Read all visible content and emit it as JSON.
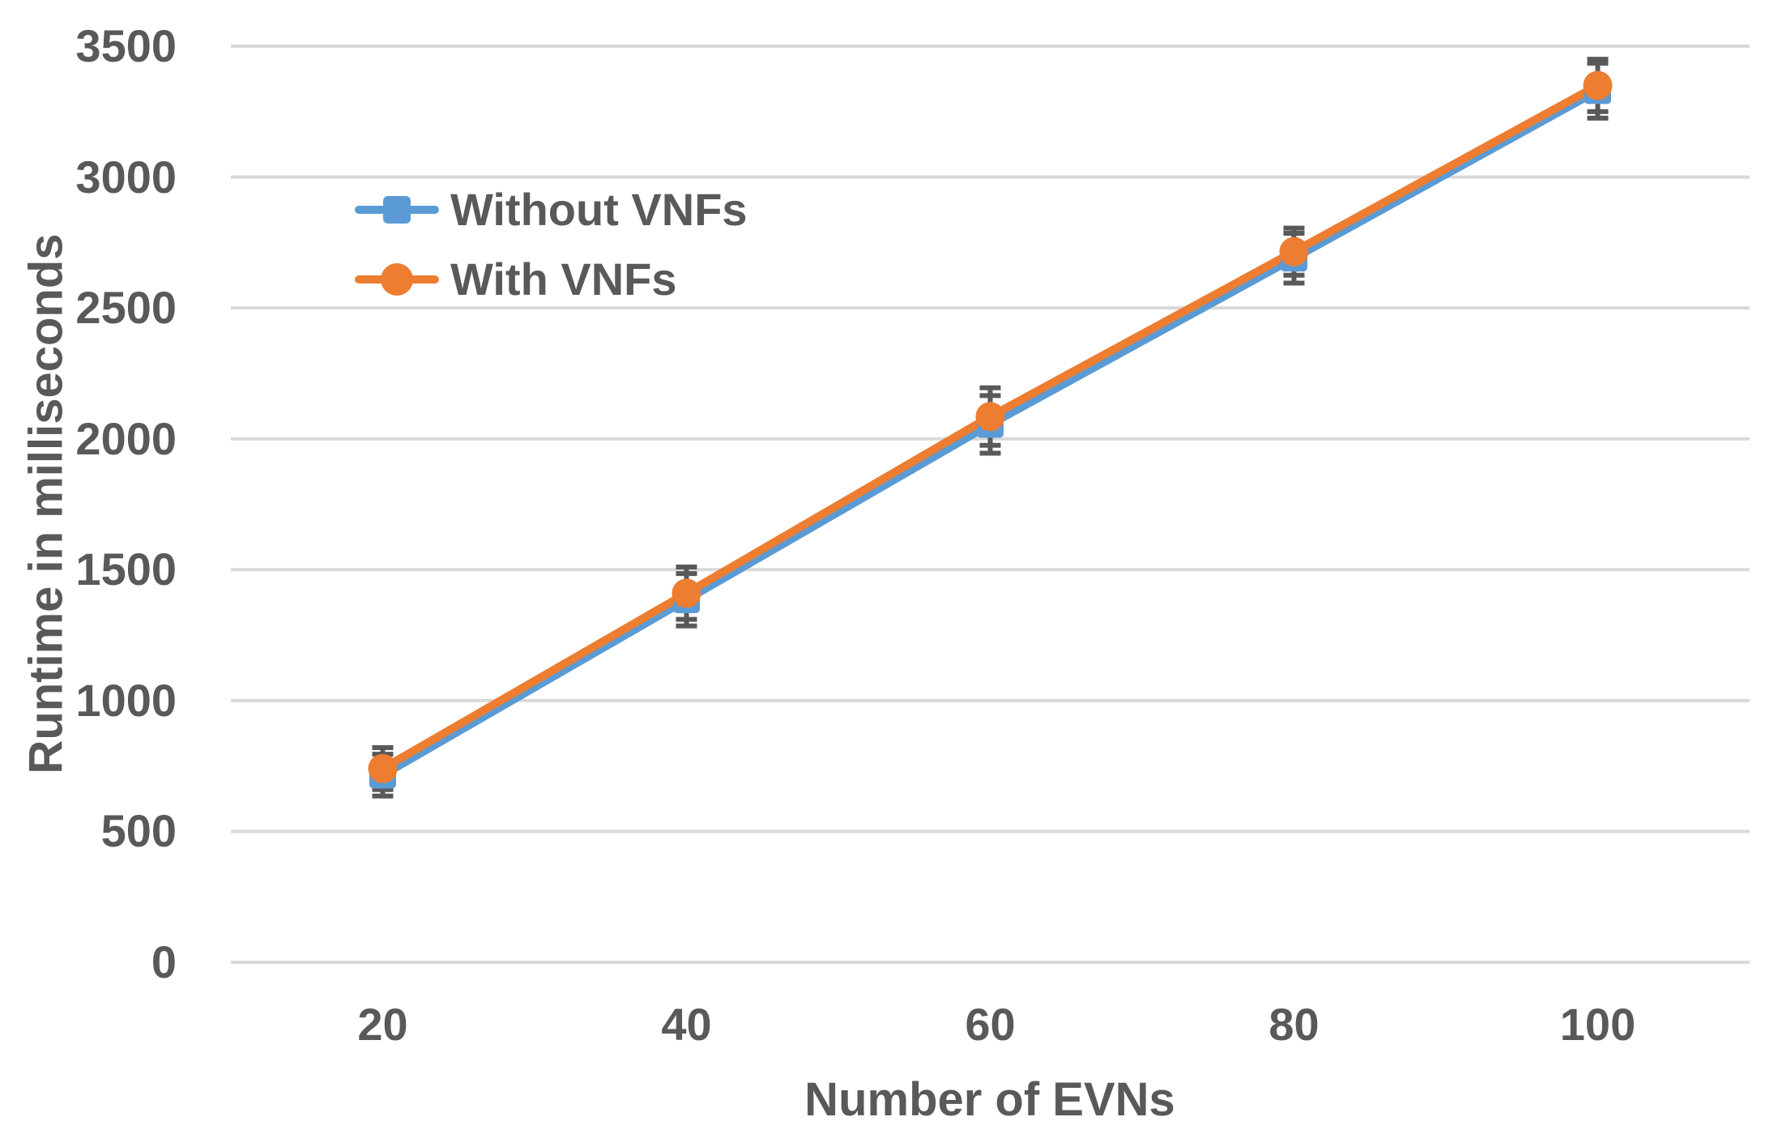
{
  "chart_data": {
    "type": "line",
    "title": "",
    "xlabel": "Number of EVNs",
    "ylabel": "Runtime in milliseconds",
    "categories": [
      "20",
      "40",
      "60",
      "80",
      "100"
    ],
    "yticks": [
      0,
      500,
      1000,
      1500,
      2000,
      2500,
      3000,
      3500
    ],
    "ylim": [
      0,
      3500
    ],
    "grid": "horizontal",
    "legend_position": "inside-top-left",
    "series": [
      {
        "name": "Without VNFs",
        "color": "#5B9BD5",
        "marker": "square",
        "values": [
          715,
          1385,
          2055,
          2690,
          3330
        ],
        "error": [
          80,
          100,
          110,
          95,
          105
        ]
      },
      {
        "name": "With VNFs",
        "color": "#ED7D31",
        "marker": "circle",
        "values": [
          740,
          1410,
          2085,
          2715,
          3350
        ],
        "error": [
          80,
          100,
          110,
          90,
          100
        ]
      }
    ],
    "error_bar_color": "#595959",
    "gridline_color": "#D9D9D9",
    "text_color": "#595959",
    "background_color": "#FFFFFF"
  }
}
